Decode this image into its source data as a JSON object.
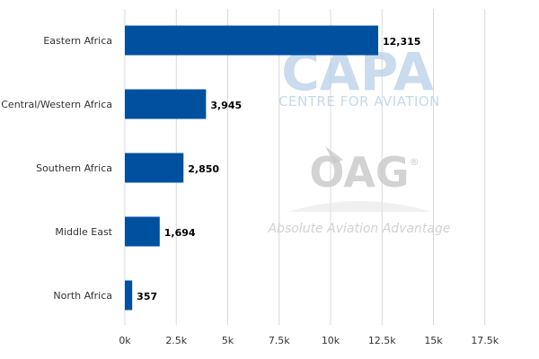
{
  "chart_data": {
    "type": "bar",
    "orientation": "horizontal",
    "categories": [
      "Eastern Africa",
      "Central/Western Africa",
      "Southern Africa",
      "Middle East",
      "North Africa"
    ],
    "values": [
      12315,
      3945,
      2850,
      1694,
      357
    ],
    "value_labels": [
      "12,315",
      "3,945",
      "2,850",
      "1,694",
      "357"
    ],
    "title": "",
    "xlabel": "",
    "ylabel": "",
    "xlim": [
      0,
      18750
    ],
    "x_ticks": [
      0,
      2500,
      5000,
      7500,
      10000,
      12500,
      15000,
      17500
    ],
    "x_tick_labels": [
      "0k",
      "2.5k",
      "5k",
      "7.5k",
      "10k",
      "12.5k",
      "15k",
      "17.5k"
    ],
    "grid": "vertical",
    "bar_color": "#0050a0",
    "legend": "none"
  },
  "watermarks": {
    "capa": {
      "logo": "CAPA",
      "subtitle": "CENTRE FOR AVIATION",
      "color": "#b8cfe6"
    },
    "oag": {
      "logo": "OAG",
      "mark": "®",
      "tagline": "Absolute Aviation Advantage",
      "color": "#c9c9c9"
    }
  }
}
